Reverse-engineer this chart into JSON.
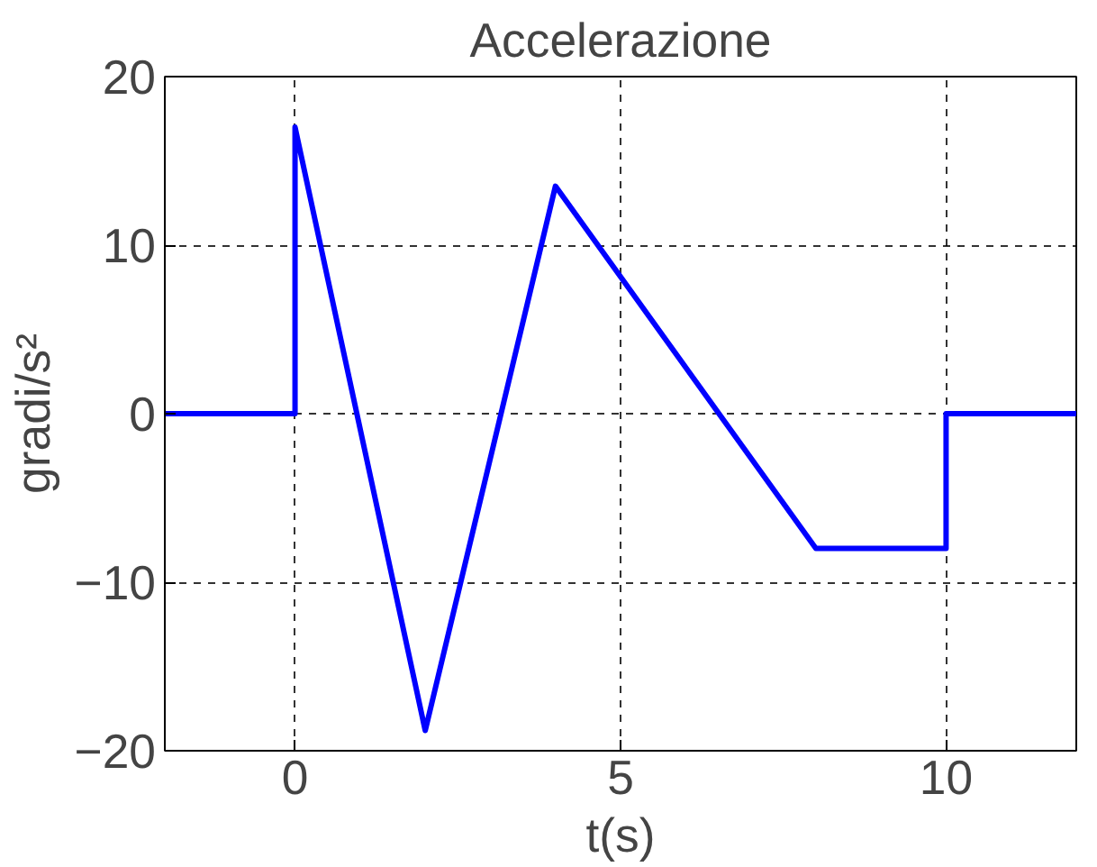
{
  "chart_data": {
    "type": "line",
    "title": "Accelerazione",
    "xlabel": "t(s)",
    "ylabel": "gradi/s²",
    "x": [
      -2,
      0,
      0,
      2,
      4,
      8,
      10,
      10,
      12
    ],
    "series": [
      {
        "color": "#0000ff",
        "values": [
          0,
          0,
          17,
          -18.8,
          13.5,
          -8,
          -8,
          0,
          0
        ]
      }
    ],
    "xlim": [
      -2,
      12
    ],
    "ylim": [
      -20,
      20
    ],
    "xticks": [
      0,
      5,
      10
    ],
    "yticks": [
      -20,
      -10,
      0,
      10,
      20
    ],
    "grid": true,
    "line_style": "solid",
    "marker": "none"
  }
}
